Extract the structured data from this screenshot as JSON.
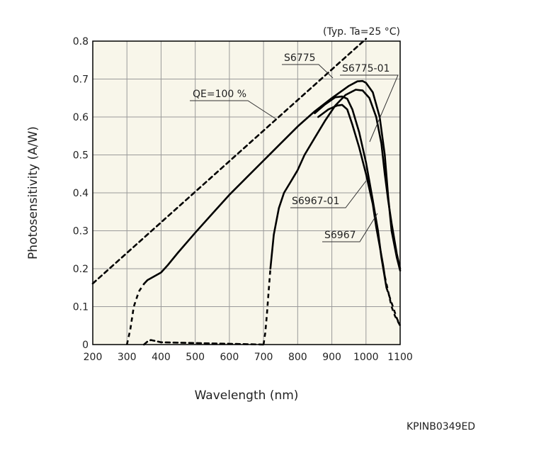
{
  "chart_data": {
    "type": "line",
    "xlabel": "Wavelength (nm)",
    "ylabel": "Photosensitivity (A/W)",
    "condition_note": "(Typ. Ta=25 °C)",
    "xlim": [
      200,
      1100
    ],
    "ylim": [
      0,
      0.8
    ],
    "x_ticks": [
      200,
      300,
      400,
      500,
      600,
      700,
      800,
      900,
      1000,
      1100
    ],
    "y_ticks": [
      0,
      0.1,
      0.2,
      0.3,
      0.4,
      0.5,
      0.6,
      0.7,
      0.8
    ],
    "y_tick_labels": [
      "0",
      "0.1",
      "0.2",
      "0.3",
      "0.4",
      "0.5",
      "0.6",
      "0.7",
      "0.8"
    ],
    "grid": true,
    "series": [
      {
        "name": "QE=100 %",
        "style": "dashed",
        "points": [
          [
            200,
            0.161
          ],
          [
            1000,
            0.806
          ]
        ]
      },
      {
        "name": "S6775",
        "style": "solid",
        "points": [
          [
            350,
            0.16
          ],
          [
            360,
            0.17
          ],
          [
            380,
            0.18
          ],
          [
            400,
            0.19
          ],
          [
            420,
            0.21
          ],
          [
            450,
            0.243
          ],
          [
            500,
            0.295
          ],
          [
            550,
            0.345
          ],
          [
            600,
            0.395
          ],
          [
            650,
            0.44
          ],
          [
            700,
            0.485
          ],
          [
            750,
            0.53
          ],
          [
            800,
            0.575
          ],
          [
            850,
            0.615
          ],
          [
            900,
            0.65
          ],
          [
            950,
            0.682
          ],
          [
            975,
            0.694
          ],
          [
            990,
            0.695
          ],
          [
            1000,
            0.69
          ],
          [
            1020,
            0.665
          ],
          [
            1040,
            0.6
          ],
          [
            1055,
            0.5
          ],
          [
            1065,
            0.39
          ],
          [
            1075,
            0.3
          ],
          [
            1090,
            0.23
          ],
          [
            1100,
            0.195
          ]
        ],
        "dashed_points": [
          [
            300,
            0
          ],
          [
            310,
            0.04
          ],
          [
            320,
            0.1
          ],
          [
            335,
            0.14
          ],
          [
            350,
            0.16
          ]
        ]
      },
      {
        "name": "S6775-01",
        "style": "solid",
        "points": [
          [
            720,
            0.2
          ],
          [
            730,
            0.29
          ],
          [
            745,
            0.36
          ],
          [
            760,
            0.4
          ],
          [
            780,
            0.43
          ],
          [
            800,
            0.46
          ],
          [
            820,
            0.5
          ],
          [
            850,
            0.545
          ],
          [
            880,
            0.59
          ],
          [
            910,
            0.63
          ],
          [
            940,
            0.658
          ],
          [
            970,
            0.672
          ],
          [
            990,
            0.67
          ],
          [
            1010,
            0.65
          ],
          [
            1030,
            0.6
          ],
          [
            1045,
            0.53
          ],
          [
            1055,
            0.45
          ],
          [
            1065,
            0.38
          ],
          [
            1075,
            0.32
          ],
          [
            1090,
            0.24
          ],
          [
            1100,
            0.2
          ]
        ],
        "dashed_points": [
          [
            700,
            0
          ],
          [
            705,
            0.03
          ],
          [
            710,
            0.08
          ],
          [
            715,
            0.14
          ],
          [
            720,
            0.2
          ]
        ]
      },
      {
        "name": "S6967-01",
        "style": "solid",
        "points": [
          [
            850,
            0.61
          ],
          [
            880,
            0.633
          ],
          [
            910,
            0.652
          ],
          [
            930,
            0.654
          ],
          [
            945,
            0.648
          ],
          [
            960,
            0.62
          ],
          [
            980,
            0.56
          ],
          [
            1000,
            0.48
          ],
          [
            1020,
            0.38
          ],
          [
            1035,
            0.3
          ],
          [
            1045,
            0.23
          ],
          [
            1060,
            0.15
          ]
        ],
        "dashed_points": [
          [
            1060,
            0.15
          ],
          [
            1075,
            0.11
          ],
          [
            1090,
            0.07
          ],
          [
            1100,
            0.05
          ]
        ]
      },
      {
        "name": "S6967",
        "style": "solid",
        "points": [
          [
            860,
            0.6
          ],
          [
            890,
            0.62
          ],
          [
            915,
            0.63
          ],
          [
            930,
            0.632
          ],
          [
            945,
            0.62
          ],
          [
            960,
            0.58
          ],
          [
            980,
            0.52
          ],
          [
            1000,
            0.45
          ],
          [
            1020,
            0.37
          ],
          [
            1030,
            0.31
          ],
          [
            1040,
            0.26
          ],
          [
            1050,
            0.21
          ],
          [
            1055,
            0.18
          ]
        ],
        "dashed_points": [
          [
            1055,
            0.18
          ],
          [
            1065,
            0.14
          ],
          [
            1075,
            0.1
          ],
          [
            1085,
            0.075
          ],
          [
            1100,
            0.05
          ]
        ]
      },
      {
        "name": "",
        "style": "dashed",
        "points": [
          [
            350,
            0
          ],
          [
            360,
            0.008
          ],
          [
            370,
            0.012
          ],
          [
            380,
            0.01
          ],
          [
            400,
            0.006
          ],
          [
            500,
            0.004
          ],
          [
            600,
            0.002
          ],
          [
            700,
            0
          ]
        ]
      }
    ]
  },
  "footer_code": "KPINB0349ED"
}
